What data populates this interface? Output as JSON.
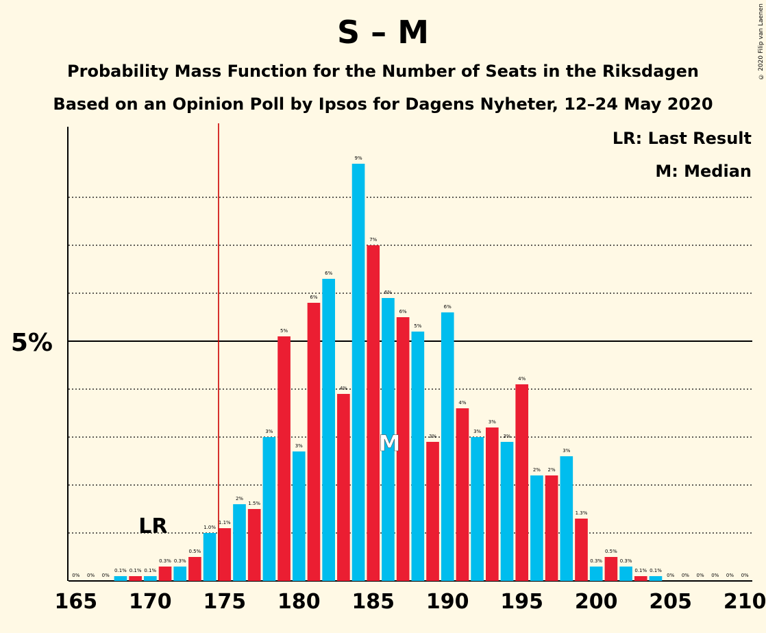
{
  "title": "S – M",
  "subtitle1": "Probability Mass Function for the Number of Seats in the Riksdagen",
  "subtitle2": "Based on an Opinion Poll by Ipsos for Dagens Nyheter, 12–24 May 2020",
  "copyright": "© 2020 Filip van Laenen",
  "legend": {
    "lr": "LR: Last Result",
    "m": "M: Median"
  },
  "colors": {
    "background": "#FFF9E5",
    "blue": "#00BDEE",
    "red": "#EB1E32",
    "threshold": "#CC0000"
  },
  "chart_data": {
    "type": "bar",
    "x": [
      165,
      166,
      167,
      168,
      169,
      170,
      171,
      172,
      173,
      174,
      175,
      176,
      177,
      178,
      179,
      180,
      181,
      182,
      183,
      184,
      185,
      186,
      187,
      188,
      189,
      190,
      191,
      192,
      193,
      194,
      195,
      196,
      197,
      198,
      199,
      200,
      201,
      202,
      203,
      204,
      205,
      206,
      207,
      208,
      209,
      210
    ],
    "values": [
      0,
      0,
      0,
      0.1,
      0.1,
      0.1,
      0.3,
      0.3,
      0.5,
      1.0,
      1.1,
      1.6,
      1.5,
      3.0,
      5.1,
      2.7,
      5.8,
      6.3,
      3.9,
      8.7,
      7.0,
      5.9,
      5.5,
      5.2,
      2.9,
      5.6,
      3.6,
      3.0,
      3.2,
      2.9,
      4.1,
      2.2,
      2.2,
      2.6,
      1.3,
      0.3,
      0.5,
      0.3,
      0.1,
      0.1,
      0,
      0,
      0,
      0,
      0,
      0
    ],
    "labels": [
      "0%",
      "0%",
      "0%",
      "0.1%",
      "0.1%",
      "0.1%",
      "0.3%",
      "0.3%",
      "0.5%",
      "1.0%",
      "1.1%",
      "2%",
      "1.5%",
      "3%",
      "5%",
      "3%",
      "6%",
      "6%",
      "4%",
      "9%",
      "7%",
      "6%",
      "6%",
      "5%",
      "3%",
      "6%",
      "4%",
      "3%",
      "3%",
      "3%",
      "4%",
      "2%",
      "2%",
      "3%",
      "1.3%",
      "0.3%",
      "0.5%",
      "0.3%",
      "0.1%",
      "0.1%",
      "0%",
      "0%",
      "0%",
      "0%",
      "0%",
      "0%"
    ],
    "x_ticks": [
      "165",
      "170",
      "175",
      "180",
      "185",
      "190",
      "195",
      "200",
      "205",
      "210"
    ],
    "y_ticks": [
      "5%"
    ],
    "ylim": [
      0,
      9.5
    ],
    "majority_line": 175,
    "last_result": 170,
    "last_result_label": "LR",
    "median": 186,
    "median_label": "M"
  }
}
